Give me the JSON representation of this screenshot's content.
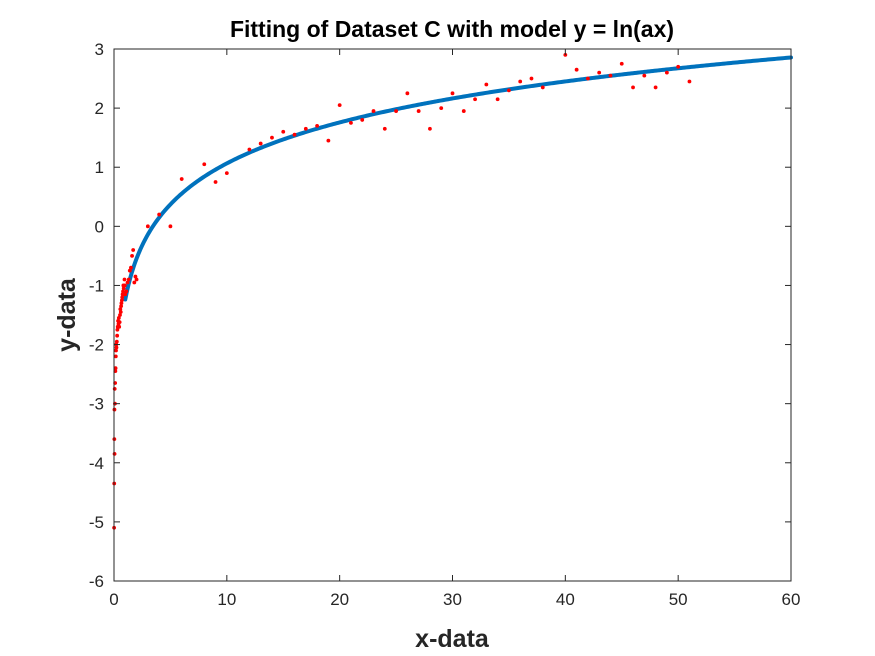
{
  "chart_data": {
    "type": "scatter",
    "title": "Fitting of Dataset C with model y = ln(ax)",
    "xlabel": "x-data",
    "ylabel": "y-data",
    "xlim": [
      0,
      60
    ],
    "ylim": [
      -6,
      3
    ],
    "xticks": [
      "0",
      "10",
      "20",
      "30",
      "40",
      "50",
      "60"
    ],
    "yticks": [
      "3",
      "2",
      "1",
      "0",
      "-1",
      "-2",
      "-3",
      "-4",
      "-5",
      "-6"
    ],
    "grid": false,
    "colors": {
      "points": "#ff0000",
      "fit": "#0072bd",
      "axes": "#262626"
    },
    "series": [
      {
        "kind": "points",
        "x": [
          0.01,
          0.02,
          0.03,
          0.04,
          0.05,
          0.06,
          0.08,
          0.1,
          0.12,
          0.14,
          0.16,
          0.18,
          0.2,
          0.22,
          0.25,
          0.28,
          0.3,
          0.33,
          0.36,
          0.4,
          0.43,
          0.46,
          0.5,
          0.53,
          0.56,
          0.6,
          0.63,
          0.66,
          0.7,
          0.73,
          0.76,
          0.8,
          0.83,
          0.86,
          0.9,
          0.93,
          0.96,
          1.0,
          1.1,
          1.2,
          1.3,
          1.4,
          1.5,
          1.6,
          1.7,
          1.8,
          1.9,
          2.0,
          3,
          4,
          5,
          6,
          8,
          9,
          10,
          12,
          13,
          14,
          15,
          16,
          17,
          18,
          19,
          20,
          21,
          22,
          23,
          24,
          25,
          26,
          27,
          28,
          29,
          30,
          31,
          32,
          33,
          34,
          35,
          36,
          37,
          38,
          40,
          41,
          42,
          43,
          44,
          45,
          46,
          47,
          48,
          49,
          50,
          51
        ],
        "y": [
          -5.1,
          -4.35,
          -3.6,
          -3.1,
          -3.85,
          -2.75,
          -3.0,
          -2.65,
          -2.45,
          -2.4,
          -2.2,
          -2.1,
          -2.0,
          -2.05,
          -1.95,
          -1.85,
          -1.75,
          -1.7,
          -1.6,
          -1.65,
          -1.55,
          -1.7,
          -1.62,
          -1.5,
          -1.4,
          -1.45,
          -1.35,
          -1.3,
          -1.25,
          -1.2,
          -1.15,
          -1.1,
          -1.0,
          -1.05,
          -1.15,
          -0.9,
          -1.0,
          -1.15,
          -1.1,
          -0.95,
          -0.9,
          -0.75,
          -0.7,
          -0.5,
          -0.4,
          -0.95,
          -0.85,
          -0.9,
          0.0,
          0.2,
          0.0,
          0.8,
          1.05,
          0.75,
          0.9,
          1.3,
          1.4,
          1.5,
          1.6,
          1.55,
          1.65,
          1.7,
          1.45,
          2.05,
          1.75,
          1.8,
          1.95,
          1.65,
          1.95,
          2.25,
          1.95,
          1.65,
          2.0,
          2.25,
          1.95,
          2.15,
          2.4,
          2.15,
          2.3,
          2.45,
          2.5,
          2.35,
          2.9,
          2.65,
          2.5,
          2.6,
          2.55,
          2.75,
          2.35,
          2.55,
          2.35,
          2.6,
          2.7,
          2.45
        ]
      },
      {
        "kind": "fit",
        "model": "y = ln(ax)",
        "a": 0.29,
        "x_range": [
          1.0,
          60
        ]
      }
    ]
  }
}
